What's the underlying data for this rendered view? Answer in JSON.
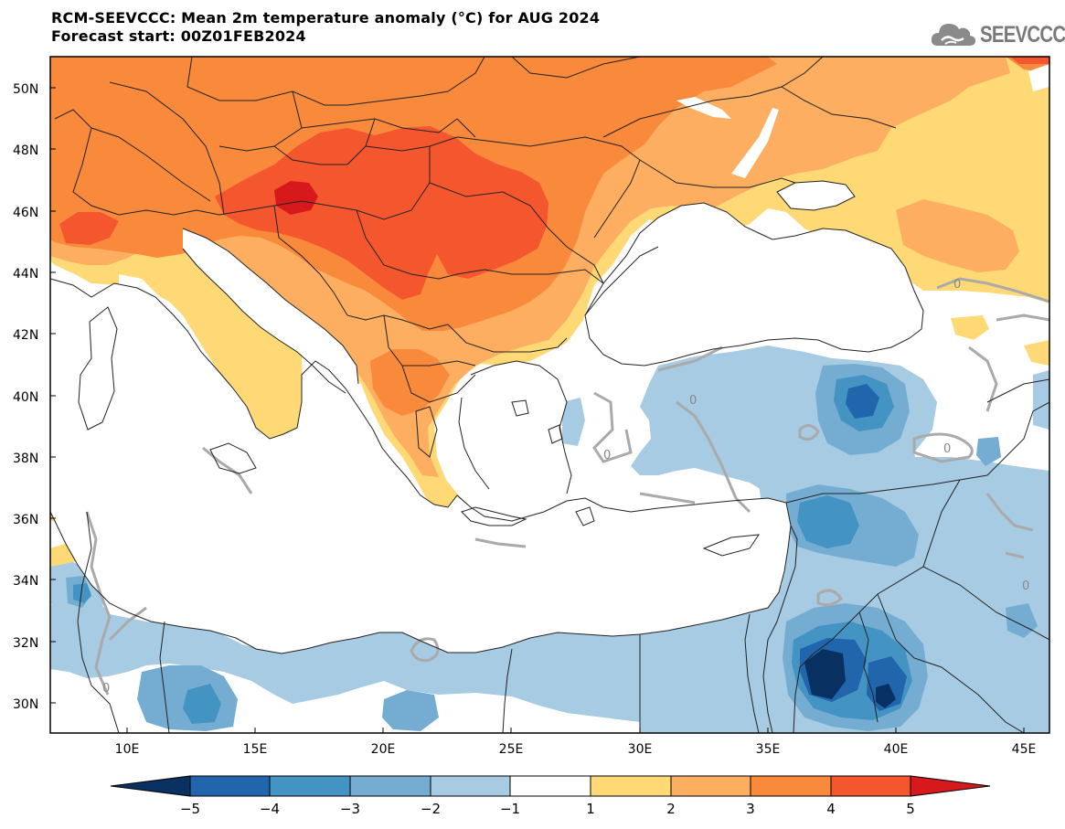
{
  "title": {
    "line1": "RCM-SEEVCCC: Mean 2m temperature anomaly (°C) for AUG 2024",
    "line2": "Forecast start: 00Z01FEB2024"
  },
  "logo": {
    "text": "SEEVCCC",
    "icon": "cloud-icon"
  },
  "map": {
    "lat_range": [
      29,
      51
    ],
    "lon_range": [
      7,
      46
    ],
    "lat_ticks": [
      "30N",
      "32N",
      "34N",
      "36N",
      "38N",
      "40N",
      "42N",
      "44N",
      "46N",
      "48N",
      "50N"
    ],
    "lon_ticks": [
      "10E",
      "15E",
      "20E",
      "25E",
      "30E",
      "35E",
      "40E",
      "45E"
    ],
    "contour_label": "0"
  },
  "colorbar": {
    "labels": [
      "−5",
      "−4",
      "−3",
      "−2",
      "−1",
      "1",
      "2",
      "3",
      "4",
      "5"
    ],
    "colors": [
      "#083061",
      "#2166ac",
      "#4393c3",
      "#74add1",
      "#a6cbe3",
      "#ffffff",
      "#fed976",
      "#fdae61",
      "#f98a3c",
      "#f4572e",
      "#d7191c"
    ]
  },
  "colors": {
    "sea": "#ffffff",
    "neutral": "#ffffff",
    "warm1": "#fed976",
    "warm2": "#fdae61",
    "warm3": "#f98a3c",
    "warm4": "#f4572e",
    "warm5": "#d7191c",
    "cool1": "#a6cbe3",
    "cool2": "#74add1",
    "cool3": "#4393c3",
    "cool4": "#2166ac",
    "cool5": "#083061",
    "contour": "#aaaaaa",
    "border": "#222222"
  }
}
